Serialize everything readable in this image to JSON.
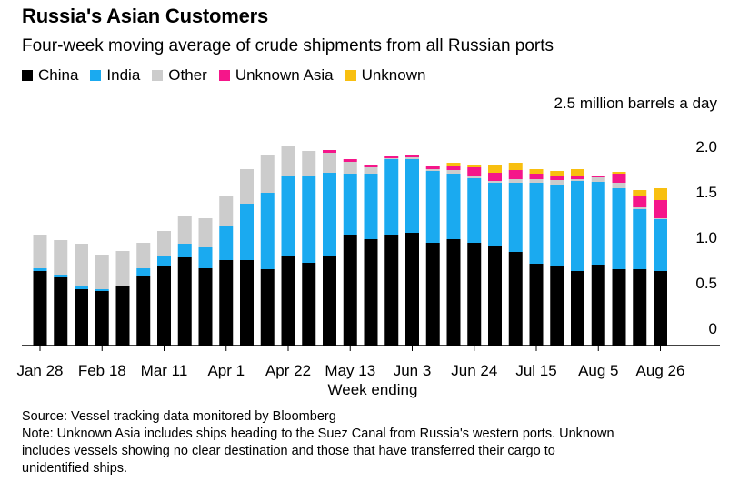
{
  "title": "Russia's Asian Customers",
  "subtitle": "Four-week moving average of crude shipments from all Russian ports",
  "legend": [
    {
      "label": "China",
      "color": "#000000"
    },
    {
      "label": "India",
      "color": "#1aaaf0"
    },
    {
      "label": "Other",
      "color": "#cccccc"
    },
    {
      "label": "Unknown Asia",
      "color": "#f5168a"
    },
    {
      "label": "Unknown",
      "color": "#f8bf10"
    }
  ],
  "source": "Source: Vessel tracking data monitored by Bloomberg",
  "note_lines": [
    "Note: Unknown Asia includes ships heading to the Suez Canal from Russia's western ports. Unknown",
    "includes vessels showing no clear destination and those that have transferred their cargo to",
    "unidentified ships."
  ],
  "chart_data": {
    "type": "bar",
    "stacked": true,
    "title": "Russia's Asian Customers",
    "subtitle": "Four-week moving average of crude shipments from all Russian ports",
    "xlabel": "Week ending",
    "unit_label": "2.5 million barrels a day",
    "ylim": [
      0,
      2.5
    ],
    "yticks": [
      "0",
      "0.5",
      "1.0",
      "1.5",
      "2.0"
    ],
    "ytick_values": [
      0,
      0.5,
      1.0,
      1.5,
      2.0
    ],
    "xtick_labels": [
      "Jan 28",
      "Feb 18",
      "Mar 11",
      "Apr 1",
      "Apr 22",
      "May 13",
      "Jun 3",
      "Jun 24",
      "Jul 15",
      "Aug 5",
      "Aug 26"
    ],
    "xtick_indices": [
      0,
      3,
      6,
      9,
      12,
      15,
      18,
      21,
      24,
      27,
      30
    ],
    "grid": false,
    "legend_position": "top-left",
    "colors": {
      "China": "#000000",
      "India": "#1aaaf0",
      "Other": "#cccccc",
      "Unknown Asia": "#f5168a",
      "Unknown": "#f8bf10"
    },
    "series": [
      {
        "name": "China",
        "values": [
          0.82,
          0.75,
          0.62,
          0.6,
          0.66,
          0.77,
          0.88,
          0.97,
          0.85,
          0.94,
          0.94,
          0.84,
          0.99,
          0.91,
          0.99,
          1.22,
          1.17,
          1.22,
          1.24,
          1.13,
          1.17,
          1.13,
          1.09,
          1.03,
          0.9,
          0.87,
          0.82,
          0.89,
          0.84,
          0.84,
          0.82
        ]
      },
      {
        "name": "India",
        "values": [
          0.03,
          0.03,
          0.03,
          0.02,
          0.0,
          0.08,
          0.1,
          0.15,
          0.23,
          0.38,
          0.62,
          0.84,
          0.88,
          0.95,
          0.91,
          0.67,
          0.72,
          0.83,
          0.81,
          0.79,
          0.72,
          0.71,
          0.7,
          0.76,
          0.89,
          0.9,
          0.99,
          0.91,
          0.89,
          0.66,
          0.57
        ]
      },
      {
        "name": "Other",
        "values": [
          0.37,
          0.38,
          0.47,
          0.38,
          0.38,
          0.28,
          0.28,
          0.3,
          0.32,
          0.32,
          0.38,
          0.42,
          0.32,
          0.28,
          0.22,
          0.13,
          0.07,
          0.01,
          0.02,
          0.02,
          0.04,
          0.02,
          0.02,
          0.04,
          0.04,
          0.05,
          0.02,
          0.05,
          0.06,
          0.02,
          0.01
        ]
      },
      {
        "name": "Unknown Asia",
        "values": [
          0,
          0,
          0,
          0,
          0,
          0,
          0,
          0,
          0,
          0,
          0,
          0,
          0,
          0,
          0.03,
          0.03,
          0.03,
          0.02,
          0.03,
          0.04,
          0.04,
          0.1,
          0.09,
          0.1,
          0.06,
          0.05,
          0.04,
          0.01,
          0.1,
          0.13,
          0.2
        ]
      },
      {
        "name": "Unknown",
        "values": [
          0,
          0,
          0,
          0,
          0,
          0,
          0,
          0,
          0,
          0,
          0,
          0,
          0,
          0,
          0,
          0,
          0,
          0,
          0,
          0,
          0.04,
          0.03,
          0.09,
          0.08,
          0.05,
          0.05,
          0.07,
          0.01,
          0.02,
          0.06,
          0.13
        ]
      }
    ]
  }
}
